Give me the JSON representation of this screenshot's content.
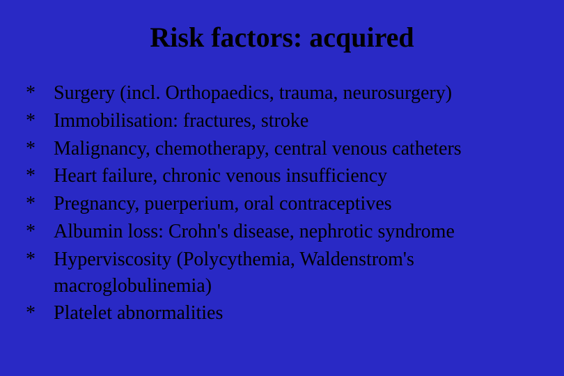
{
  "slide": {
    "title": "Risk factors: acquired",
    "background_color": "#2929c5",
    "title_color": "#000000",
    "title_fontsize": 40,
    "text_color": "#000000",
    "text_fontsize": 28,
    "bullet_marker": "*",
    "font_family": "Times New Roman",
    "bullets": [
      {
        "text": "Surgery (incl. Orthopaedics, trauma, neurosurgery)"
      },
      {
        "text": "Immobilisation: fractures, stroke"
      },
      {
        "text": "Malignancy, chemotherapy, central venous catheters"
      },
      {
        "text": "Heart failure, chronic venous insufficiency"
      },
      {
        "text": "Pregnancy, puerperium, oral contraceptives"
      },
      {
        "text": "Albumin loss: Crohn's disease, nephrotic syndrome"
      },
      {
        "text": "Hyperviscosity (Polycythemia, Waldenstrom's macroglobulinemia)"
      },
      {
        "text": "Platelet abnormalities"
      }
    ]
  }
}
